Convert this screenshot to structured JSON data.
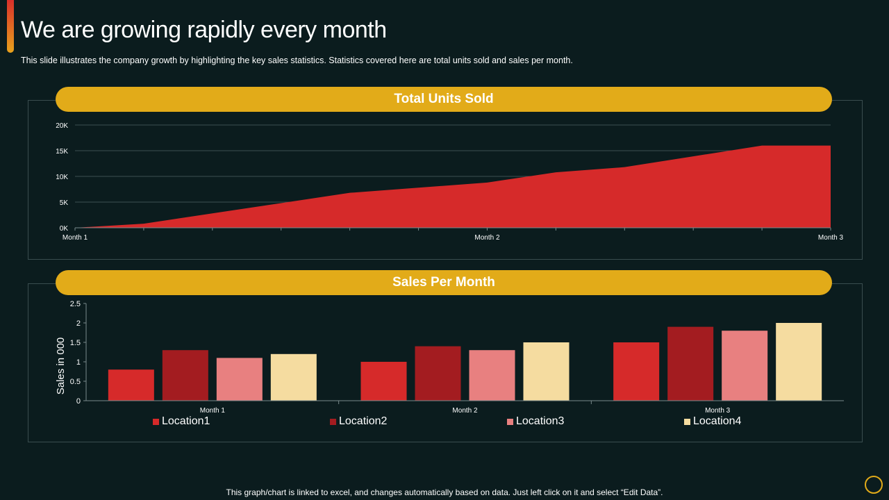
{
  "slide": {
    "title": "We are growing rapidly every month",
    "subtitle": "This slide illustrates the company growth  by highlighting the key sales statistics. Statistics covered here are total units sold and sales per month.",
    "footer": "This graph/chart is linked to excel,  and changes automatically based on data. Just left click on it and select “Edit Data”."
  },
  "colors": {
    "background": "#0b1c1e",
    "pill": "#e2ab19",
    "area": "#d62a2a",
    "location1": "#d62a2a",
    "location2": "#a31c20",
    "location3": "#e88080",
    "location4": "#f5dca0"
  },
  "chart_data": [
    {
      "type": "area",
      "title": "Total Units Sold",
      "x_tick_labels": [
        "Month 1",
        "Month 2",
        "Month 3"
      ],
      "x": [
        0,
        1,
        2,
        3,
        4,
        5,
        6,
        7,
        8,
        9,
        10,
        11
      ],
      "values": [
        0,
        800,
        2800,
        4800,
        6800,
        7800,
        8800,
        10800,
        11800,
        13900,
        16000,
        16000
      ],
      "yticks": [
        "0K",
        "5K",
        "10K",
        "15K",
        "20K"
      ],
      "ylim": [
        0,
        20000
      ],
      "grid": true,
      "xlabel": "",
      "ylabel": ""
    },
    {
      "type": "bar",
      "title": "Sales Per Month",
      "categories": [
        "Month 1",
        "Month 2",
        "Month 3"
      ],
      "series": [
        {
          "name": "Location1",
          "values": [
            0.8,
            1.0,
            1.5
          ]
        },
        {
          "name": "Location2",
          "values": [
            1.3,
            1.4,
            1.9
          ]
        },
        {
          "name": "Location3",
          "values": [
            1.1,
            1.3,
            1.8
          ]
        },
        {
          "name": "Location4",
          "values": [
            1.2,
            1.5,
            2.0
          ]
        }
      ],
      "yticks": [
        "0",
        "0.5",
        "1",
        "1.5",
        "2",
        "2.5"
      ],
      "ylim": [
        0,
        2.5
      ],
      "ylabel": "Sales in 000",
      "xlabel": "",
      "legend_position": "bottom",
      "grid": false
    }
  ]
}
